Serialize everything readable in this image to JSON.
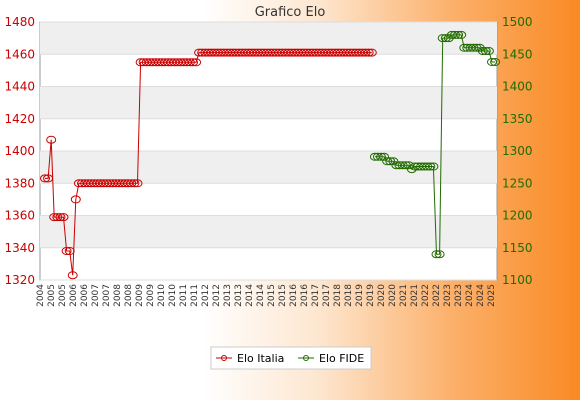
{
  "chart_data": {
    "type": "line",
    "title": "Grafico Elo",
    "xlabel": "",
    "ylabel_left": "",
    "ylabel_right": "",
    "y_left_lim": [
      1320,
      1480
    ],
    "y_right_lim": [
      1100,
      1500
    ],
    "y_left_ticks": [
      1320,
      1340,
      1360,
      1380,
      1400,
      1420,
      1440,
      1460,
      1480
    ],
    "y_right_ticks": [
      1100,
      1150,
      1200,
      1250,
      1300,
      1350,
      1400,
      1450,
      1500
    ],
    "grid": true,
    "legend_position": "bottom",
    "num_points": 146,
    "x_tick_labels": [
      "2004",
      "2005",
      "2005",
      "2006",
      "2006",
      "2007",
      "2007",
      "2008",
      "2008",
      "2009",
      "2009",
      "2010",
      "2010",
      "2011",
      "2011",
      "2012",
      "2012",
      "2013",
      "2013",
      "2014",
      "2014",
      "2015",
      "2015",
      "2016",
      "2016",
      "2017",
      "2017",
      "2018",
      "2018",
      "2019",
      "2019",
      "2020",
      "2020",
      "2021",
      "2021",
      "2022",
      "2022",
      "2023",
      "2023",
      "2024",
      "2024",
      "2025"
    ],
    "series": [
      {
        "name": "Elo Italia",
        "axis": "left",
        "color": "#cc0000",
        "segments": [
          {
            "start": 0,
            "values": [
              1383,
              1383,
              1407,
              1359,
              1359,
              1359,
              1359,
              1338,
              1338,
              1323,
              1370,
              1380,
              1380,
              1380,
              1380,
              1380,
              1380,
              1380,
              1380,
              1380,
              1380,
              1380,
              1380,
              1380,
              1380,
              1380,
              1380,
              1380,
              1380,
              1380,
              1380,
              1455,
              1455,
              1455,
              1455,
              1455,
              1455,
              1455,
              1455,
              1455,
              1455,
              1455,
              1455,
              1455,
              1455,
              1455,
              1455,
              1455,
              1455,
              1455,
              1461,
              1461,
              1461,
              1461,
              1461,
              1461,
              1461,
              1461,
              1461,
              1461,
              1461,
              1461,
              1461,
              1461,
              1461,
              1461,
              1461,
              1461,
              1461,
              1461,
              1461,
              1461,
              1461,
              1461,
              1461,
              1461,
              1461,
              1461,
              1461,
              1461,
              1461,
              1461,
              1461,
              1461,
              1461,
              1461,
              1461,
              1461,
              1461,
              1461,
              1461,
              1461,
              1461,
              1461,
              1461,
              1461,
              1461,
              1461,
              1461,
              1461,
              1461,
              1461,
              1461,
              1461,
              1461,
              1461,
              1461
            ]
          }
        ]
      },
      {
        "name": "Elo FIDE",
        "axis": "right",
        "color": "#226b00",
        "segments": [
          {
            "start": 107,
            "values": [
              1291,
              1291,
              1291,
              1291,
              1284,
              1284,
              1284,
              1278,
              1278,
              1278,
              1278,
              1278,
              1272,
              1276,
              1276,
              1276,
              1276,
              1276,
              1276,
              1276,
              1140,
              1140,
              1475,
              1475,
              1475,
              1480,
              1480,
              1480,
              1480,
              1460,
              1460,
              1460,
              1460,
              1460,
              1460,
              1455,
              1455,
              1455,
              1438,
              1438
            ]
          }
        ]
      }
    ]
  }
}
